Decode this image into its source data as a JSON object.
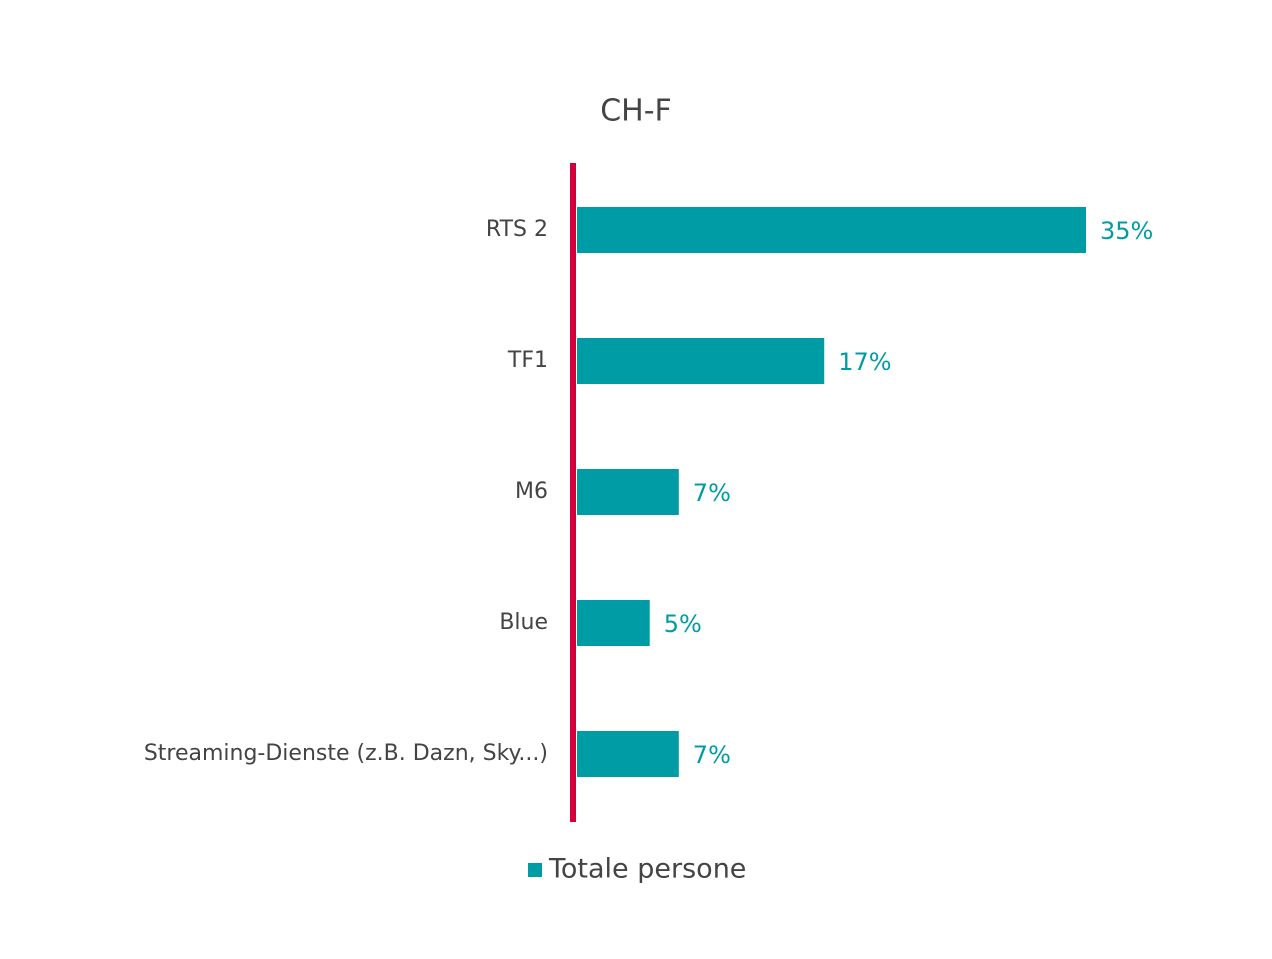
{
  "chart_data": {
    "type": "hbar",
    "title": "CH-F",
    "categories": [
      "RTS 2",
      "TF1",
      "M6",
      "Blue",
      "Streaming-Dienste (z.B. Dazn, Sky...)"
    ],
    "series": [
      {
        "name": "Totale persone",
        "color": "#009ca6",
        "values": [
          35,
          17,
          7,
          5,
          7
        ],
        "value_labels": [
          "35%",
          "17%",
          "7%",
          "5%",
          "7%"
        ]
      }
    ],
    "xlim": [
      0,
      35
    ],
    "axis_color": "#d4003c",
    "legend": "bottom"
  }
}
